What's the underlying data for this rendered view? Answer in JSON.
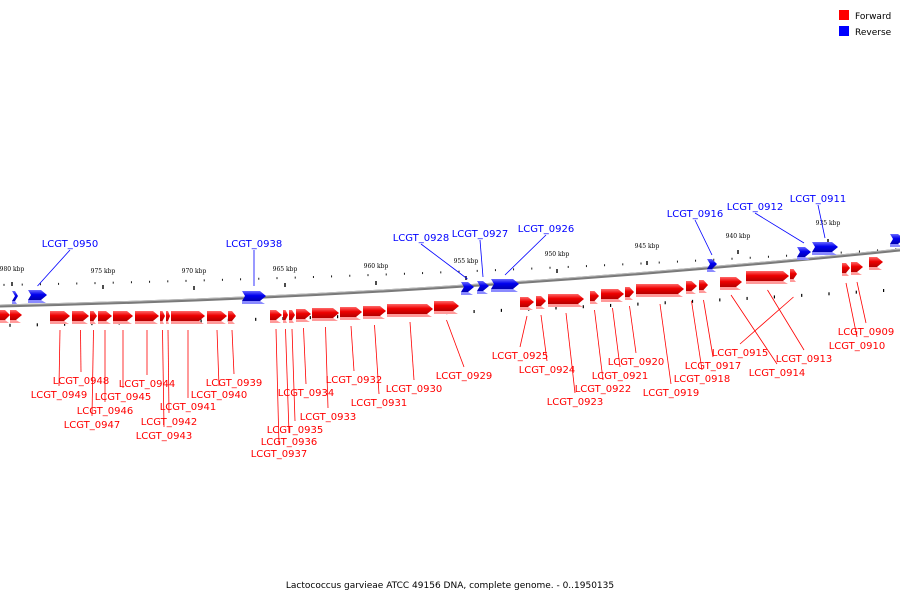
{
  "legend": {
    "items": [
      {
        "label": "Forward",
        "color": "#ff0000"
      },
      {
        "label": "Reverse",
        "color": "#0000ff"
      }
    ]
  },
  "caption": "Lactococcus garvieae ATCC 49156 DNA, complete genome. - 0..1950135",
  "scale_labels": [
    "980 kbp",
    "975 kbp",
    "970 kbp",
    "965 kbp",
    "960 kbp",
    "955 kbp",
    "950 kbp",
    "945 kbp",
    "940 kbp",
    "935 kbp"
  ],
  "genes": {
    "forward": [
      "LCGT_0909",
      "LCGT_0910",
      "LCGT_0913",
      "LCGT_0914",
      "LCGT_0915",
      "LCGT_0917",
      "LCGT_0918",
      "LCGT_0919",
      "LCGT_0920",
      "LCGT_0921",
      "LCGT_0922",
      "LCGT_0923",
      "LCGT_0924",
      "LCGT_0925",
      "LCGT_0929",
      "LCGT_0930",
      "LCGT_0931",
      "LCGT_0932",
      "LCGT_0933",
      "LCGT_0934",
      "LCGT_0935",
      "LCGT_0936",
      "LCGT_0937",
      "LCGT_0939",
      "LCGT_0940",
      "LCGT_0941",
      "LCGT_0942",
      "LCGT_0943",
      "LCGT_0944",
      "LCGT_0945",
      "LCGT_0946",
      "LCGT_0947",
      "LCGT_0948",
      "LCGT_0949"
    ],
    "reverse": [
      "LCGT_0911",
      "LCGT_0912",
      "LCGT_0916",
      "LCGT_0926",
      "LCGT_0927",
      "LCGT_0928",
      "LCGT_0938",
      "LCGT_0950"
    ]
  }
}
